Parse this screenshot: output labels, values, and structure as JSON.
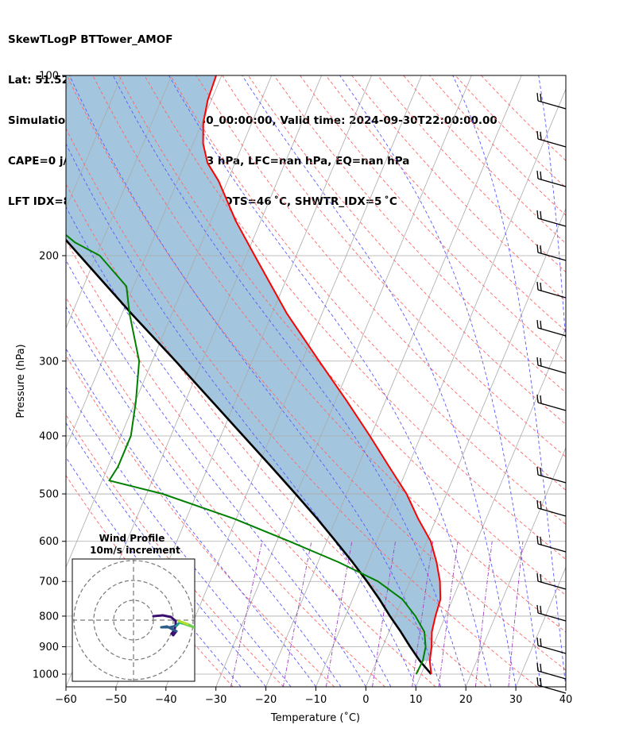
{
  "header": {
    "line1": "SkewTLogP BTTower_AMOF",
    "line2": "Lat: 51.52   Lon: -0.14",
    "line3": "Simulation start time: 2024-09-30_00:00:00, Valid time: 2024-09-30T22:00:00.00",
    "line4": "CAPE=0 j/kg, CIN=0 j/kg, LCL=953 hPa, LFC=nan hPa, EQ=nan hPa",
    "line5": "LFT IDX=8 ˚C, K IDX=21 ˚C, TOTAL TOTS=46 ˚C, SHWTR_IDX=5 ˚C"
  },
  "hodograph": {
    "title_line1": "Wind Profile",
    "title_line2": "10m/s increment"
  },
  "colors": {
    "temperature": "#ff0000",
    "dewpoint": "#008000",
    "parcel": "#000000",
    "cape_fill": "#a3c6de",
    "dry_adiabat": "#ff6666",
    "moist_adiabat": "#5a5aff",
    "mixing_ratio": "#a040c0",
    "isotherm": "#aaaaaa",
    "isobar": "#aaaaaa"
  },
  "chart_data": {
    "type": "line",
    "xlabel": "Temperature (˚C)",
    "ylabel": "Pressure (hPa)",
    "xlim": [
      -60,
      40
    ],
    "ylim": [
      1050,
      100
    ],
    "yscale": "log",
    "x_ticks": [
      "−60",
      "−50",
      "−40",
      "−30",
      "−20",
      "−10",
      "0",
      "10",
      "20",
      "30",
      "40"
    ],
    "y_ticks": [
      "100",
      "200",
      "300",
      "400",
      "500",
      "600",
      "700",
      "800",
      "900",
      "1000"
    ],
    "grid": true,
    "series": [
      {
        "kind": "temperature",
        "p": [
          1000,
          950,
          900,
          850,
          800,
          750,
          700,
          650,
          600,
          550,
          500,
          450,
          400,
          350,
          300,
          250,
          200,
          175,
          150,
          140,
          130,
          120,
          110,
          100
        ],
        "values": [
          12.0,
          10.6,
          9.8,
          8.6,
          8.0,
          7.6,
          6.0,
          3.7,
          0.8,
          -3.6,
          -8.0,
          -13.8,
          -20.2,
          -27.7,
          -36.6,
          -47.0,
          -58.3,
          -65.0,
          -71.8,
          -75.5,
          -78.0,
          -79.7,
          -80.7,
          -81.1
        ]
      },
      {
        "kind": "dewpoint",
        "p": [
          1000,
          950,
          900,
          850,
          800,
          750,
          700,
          650,
          600,
          550,
          500,
          475,
          450,
          400,
          350,
          300,
          250,
          225,
          200,
          190,
          180,
          150,
          100
        ],
        "values": [
          9.0,
          9.2,
          8.6,
          7.1,
          4.0,
          0.0,
          -6.4,
          -15.9,
          -27.5,
          -40.4,
          -56.8,
          -68.6,
          -68.0,
          -68.0,
          -69.9,
          -72.6,
          -78.5,
          -81.4,
          -89.3,
          -95.4,
          -100.0,
          -104.6,
          -115.6
        ]
      },
      {
        "kind": "parcel",
        "p": [
          1000,
          950,
          900,
          850,
          800,
          750,
          700,
          650,
          600,
          550,
          500,
          450,
          400,
          350,
          300,
          250,
          200,
          150,
          100
        ],
        "values": [
          12.0,
          8.6,
          5.5,
          2.4,
          -1.1,
          -4.6,
          -8.6,
          -13.1,
          -18.2,
          -23.8,
          -30.2,
          -37.4,
          -45.5,
          -54.7,
          -65.3,
          -78.1,
          -93.3,
          -112.8,
          -140.0
        ]
      }
    ],
    "hodograph_rings_ms": [
      10,
      20,
      30
    ]
  }
}
